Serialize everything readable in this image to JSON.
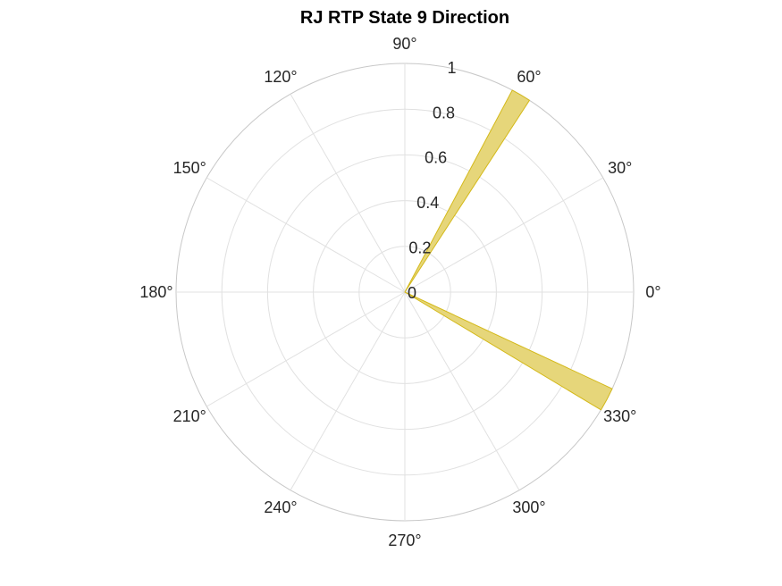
{
  "chart_data": {
    "type": "polar-histogram",
    "title": "RJ  RTP State 9 Direction",
    "angle_ticks": [
      "0°",
      "30°",
      "60°",
      "90°",
      "120°",
      "150°",
      "180°",
      "210°",
      "240°",
      "270°",
      "300°",
      "330°"
    ],
    "angle_tick_values_deg": [
      0,
      30,
      60,
      90,
      120,
      150,
      180,
      210,
      240,
      270,
      300,
      330
    ],
    "radial_ticks": [
      "0",
      "0.2",
      "0.4",
      "0.6",
      "0.8",
      "1"
    ],
    "radial_tick_values": [
      0,
      0.2,
      0.4,
      0.6,
      0.8,
      1
    ],
    "rlim": [
      0,
      1
    ],
    "grid": true,
    "bars": [
      {
        "theta_start_deg": 57,
        "theta_end_deg": 62,
        "r": 1
      },
      {
        "theta_start_deg": 329,
        "theta_end_deg": 335,
        "r": 1
      }
    ],
    "face_color": "#e6d67a",
    "edge_color": "#d4b91a"
  }
}
